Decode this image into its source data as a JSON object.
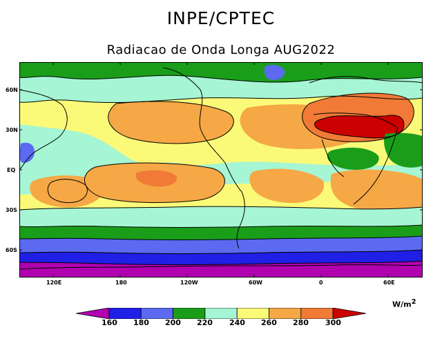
{
  "header": {
    "organization": "INPE/CPTEC",
    "product_title": "Radiacao de Onda Longa AUG2022"
  },
  "map": {
    "latitude_labels": [
      "60N",
      "30N",
      "EQ",
      "30S",
      "60S"
    ],
    "longitude_labels": [
      "120E",
      "180",
      "120W",
      "60W",
      "0",
      "60E"
    ]
  },
  "legend": {
    "units_base": "W/m",
    "units_exponent": "2",
    "levels": [
      "160",
      "180",
      "200",
      "220",
      "240",
      "260",
      "280",
      "300"
    ],
    "colors": [
      "#b000b0",
      "#1f1fe6",
      "#5b6af0",
      "#1a9e1a",
      "#a6f5d4",
      "#fafa78",
      "#f5a845",
      "#f07a36",
      "#cc0000"
    ]
  }
}
